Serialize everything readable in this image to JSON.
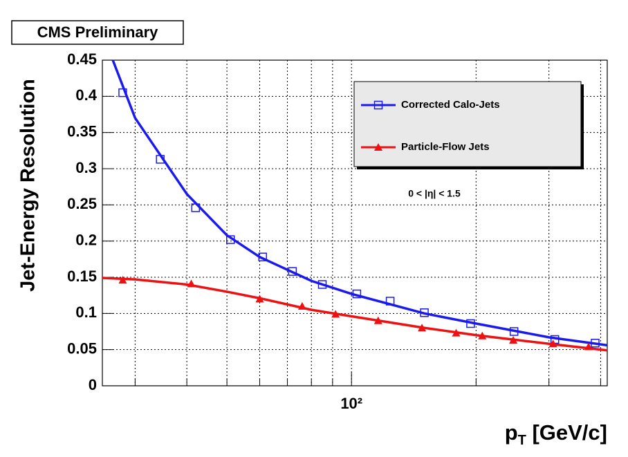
{
  "chart_data": {
    "type": "scatter",
    "badge": "CMS Preliminary",
    "ylabel": "Jet-Energy Resolution",
    "xlabel": "p",
    "xlabel_sub": "T",
    "xlabel_rest": " [GeV/c]",
    "annotation": "0 < |η| < 1.5",
    "xlog": true,
    "grid": true,
    "legend": "upper right",
    "xlim": [
      25,
      415
    ],
    "ylim": [
      0,
      0.45
    ],
    "xticks": [
      {
        "value": 100,
        "label": "10²"
      }
    ],
    "xminorticks": [
      30,
      40,
      50,
      60,
      70,
      80,
      90,
      200,
      300,
      400
    ],
    "yticks": [
      0,
      0.05,
      0.1,
      0.15,
      0.2,
      0.25,
      0.3,
      0.35,
      0.4,
      0.45
    ],
    "series": [
      {
        "name": "Corrected Calo-Jets",
        "color": "#1a1aee",
        "marker": "open-square",
        "x": [
          28,
          34.5,
          42,
          51,
          61,
          72,
          85,
          103,
          124,
          150,
          194,
          247,
          310,
          388
        ],
        "values": [
          0.405,
          0.313,
          0.246,
          0.202,
          0.178,
          0.158,
          0.14,
          0.127,
          0.117,
          0.101,
          0.086,
          0.075,
          0.064,
          0.059
        ],
        "fit": {
          "x": [
            26.5,
            30,
            40,
            50,
            60,
            80,
            100,
            150,
            200,
            300,
            415
          ],
          "values": [
            0.45,
            0.37,
            0.265,
            0.208,
            0.178,
            0.145,
            0.127,
            0.1,
            0.086,
            0.067,
            0.056
          ]
        }
      },
      {
        "name": "Particle-Flow Jets",
        "color": "#ee1111",
        "marker": "filled-triangle",
        "x": [
          28,
          41,
          60,
          76,
          91.5,
          116,
          148,
          179,
          207,
          246,
          307,
          374
        ],
        "values": [
          0.146,
          0.141,
          0.12,
          0.11,
          0.099,
          0.09,
          0.08,
          0.073,
          0.069,
          0.063,
          0.058,
          0.054
        ],
        "fit": {
          "x": [
            25,
            30,
            40,
            50,
            60,
            80,
            100,
            150,
            200,
            300,
            415
          ],
          "values": [
            0.149,
            0.147,
            0.14,
            0.13,
            0.121,
            0.105,
            0.096,
            0.08,
            0.07,
            0.058,
            0.049
          ]
        }
      }
    ]
  }
}
